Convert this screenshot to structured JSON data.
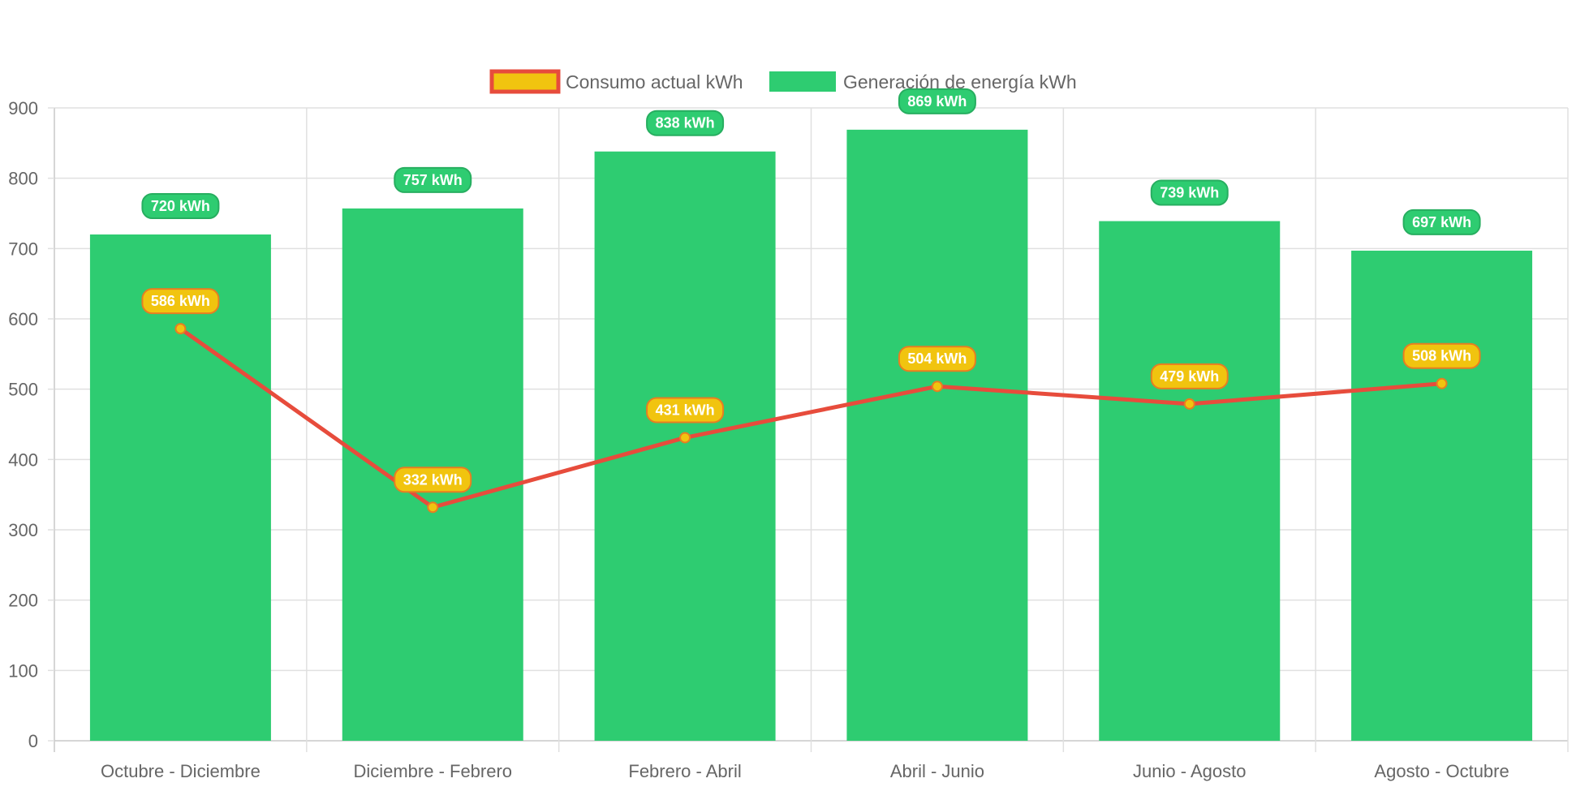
{
  "chart_data": {
    "type": "bar",
    "categories": [
      "Octubre - Diciembre",
      "Diciembre - Febrero",
      "Febrero - Abril",
      "Abril - Junio",
      "Junio - Agosto",
      "Agosto - Octubre"
    ],
    "series": [
      {
        "name": "Consumo actual kWh",
        "type": "line",
        "values": [
          586,
          332,
          431,
          504,
          479,
          508
        ],
        "labels": [
          "586 kWh",
          "332 kWh",
          "431 kWh",
          "504 kWh",
          "479 kWh",
          "508 kWh"
        ]
      },
      {
        "name": "Generación de energía kWh",
        "type": "bar",
        "values": [
          720,
          757,
          838,
          869,
          739,
          697
        ],
        "labels": [
          "720 kWh",
          "757 kWh",
          "838 kWh",
          "869 kWh",
          "739 kWh",
          "697 kWh"
        ]
      }
    ],
    "yticks": [
      "0",
      "100",
      "200",
      "300",
      "400",
      "500",
      "600",
      "700",
      "800",
      "900"
    ],
    "ylim": [
      0,
      900
    ],
    "grid": true,
    "legend_position": "top-center",
    "colors": {
      "bar_fill": "#2ecc71",
      "bar_label_border": "#27ae60",
      "line": "#e74c3c",
      "point_fill": "#f1c40f",
      "point_label_fill": "#f1c40f",
      "point_label_border": "#e67e22",
      "grid": "#e0e0e0",
      "axis_text": "#666666"
    }
  }
}
